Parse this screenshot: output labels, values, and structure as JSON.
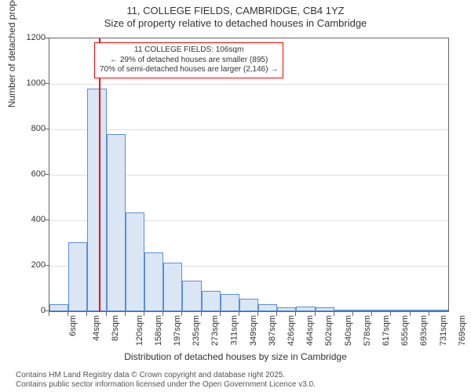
{
  "title": {
    "main": "11, COLLEGE FIELDS, CAMBRIDGE, CB4 1YZ",
    "sub": "Size of property relative to detached houses in Cambridge"
  },
  "chart": {
    "type": "histogram",
    "ylim": [
      0,
      1200
    ],
    "ytick_step": 200,
    "y_label": "Number of detached properties",
    "x_label": "Distribution of detached houses by size in Cambridge",
    "bar_fill": "#dbe6f5",
    "bar_border": "#5b8fd6",
    "grid_color": "#e0e0e0",
    "background_color": "#ffffff",
    "axis_color": "#666666",
    "marker_color": "#ff0000",
    "annotation_border": "#ff0000",
    "marker_value_sqm": 106,
    "x_categories": [
      "6sqm",
      "44sqm",
      "82sqm",
      "120sqm",
      "158sqm",
      "197sqm",
      "235sqm",
      "273sqm",
      "311sqm",
      "349sqm",
      "387sqm",
      "426sqm",
      "464sqm",
      "502sqm",
      "540sqm",
      "578sqm",
      "617sqm",
      "655sqm",
      "693sqm",
      "731sqm",
      "769sqm"
    ],
    "bars": [
      30,
      305,
      980,
      780,
      435,
      260,
      215,
      135,
      90,
      75,
      55,
      30,
      18,
      22,
      18,
      8,
      6,
      5,
      4,
      3,
      2
    ],
    "annotation": {
      "line1": "11 COLLEGE FIELDS: 106sqm",
      "line2": "← 29% of detached houses are smaller (895)",
      "line3": "70% of semi-detached houses are larger (2,146) →"
    }
  },
  "footer": {
    "line1": "Contains HM Land Registry data © Crown copyright and database right 2025.",
    "line2": "Contains public sector information licensed under the Open Government Licence v3.0."
  }
}
